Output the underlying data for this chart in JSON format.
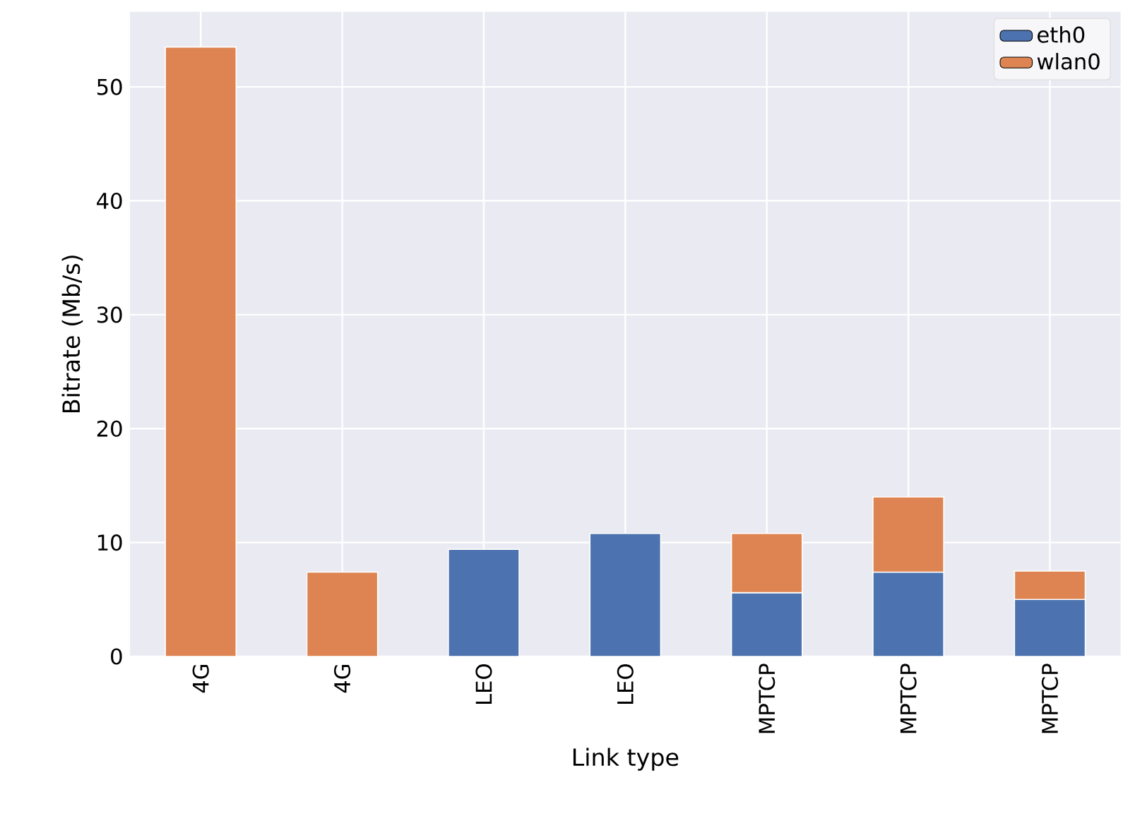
{
  "chart_data": {
    "type": "bar",
    "stacked": true,
    "xlabel": "Link type",
    "ylabel": "Bitrate (Mb/s)",
    "categories": [
      "4G",
      "4G",
      "LEO",
      "LEO",
      "MPTCP",
      "MPTCP",
      "MPTCP"
    ],
    "series": [
      {
        "name": "eth0",
        "color": "#4c72b0",
        "values": [
          null,
          null,
          9.4,
          10.8,
          5.6,
          7.4,
          5.0
        ]
      },
      {
        "name": "wlan0",
        "color": "#dd8452",
        "values": [
          53.5,
          7.4,
          null,
          null,
          5.2,
          6.6,
          2.5
        ]
      }
    ],
    "ylim": [
      0,
      56.6
    ],
    "yticks": [
      0,
      10,
      20,
      30,
      40,
      50
    ],
    "grid": true,
    "legend": "top right"
  }
}
